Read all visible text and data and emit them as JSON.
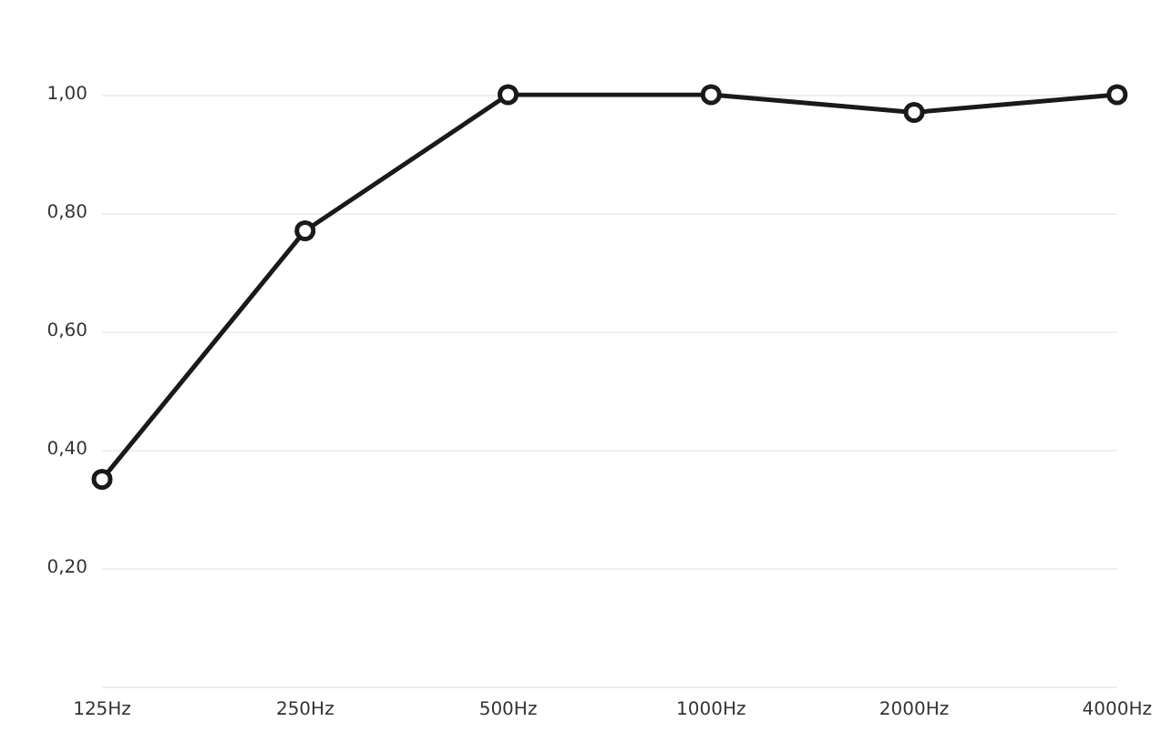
{
  "chart_data": {
    "type": "line",
    "categories": [
      "125Hz",
      "250Hz",
      "500Hz",
      "1000Hz",
      "2000Hz",
      "4000Hz"
    ],
    "series": [
      {
        "color": "#1a1a1a",
        "values": [
          0.35,
          0.77,
          1.0,
          1.0,
          0.97,
          1.0
        ]
      }
    ],
    "ylim": [
      0,
      1
    ],
    "yticks": [
      {
        "value": 0,
        "label": null
      },
      {
        "value": 0.2,
        "label": "0,20"
      },
      {
        "value": 0.4,
        "label": "0,40"
      },
      {
        "value": 0.6,
        "label": "0,60"
      },
      {
        "value": 0.8,
        "label": "0,80"
      },
      {
        "value": 1,
        "label": "1,00"
      }
    ],
    "grid": "y",
    "marker": "circle",
    "line_style": "solid"
  }
}
